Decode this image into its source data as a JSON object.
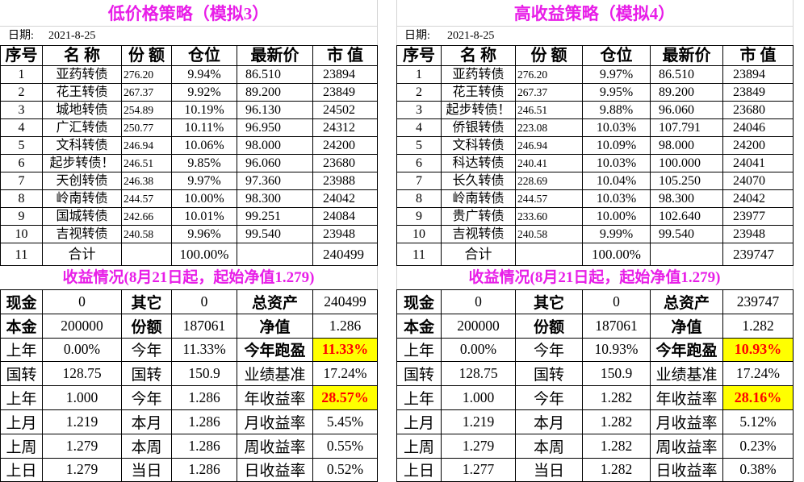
{
  "colors": {
    "title": "#e81ee8",
    "highlight_bg": "#ffff00",
    "highlight_text": "#ff0000"
  },
  "panels": [
    {
      "title": "低价格策略（模拟3）",
      "date_label": "日期:",
      "date": "2021-8-25",
      "headers": [
        "序号",
        "名  称",
        "份  额",
        "仓位",
        "最新价",
        "市  值"
      ],
      "rows": [
        {
          "no": "1",
          "name": "亚药转债",
          "shares": "276.20",
          "position": "9.94%",
          "price": "86.510",
          "value": "23894"
        },
        {
          "no": "2",
          "name": "花王转债",
          "shares": "267.37",
          "position": "9.92%",
          "price": "89.200",
          "value": "23849"
        },
        {
          "no": "3",
          "name": "城地转债",
          "shares": "254.89",
          "position": "10.19%",
          "price": "96.130",
          "value": "24502"
        },
        {
          "no": "4",
          "name": "广汇转债",
          "shares": "250.77",
          "position": "10.11%",
          "price": "96.950",
          "value": "24312"
        },
        {
          "no": "5",
          "name": "文科转债",
          "shares": "246.94",
          "position": "10.06%",
          "price": "98.000",
          "value": "24200"
        },
        {
          "no": "6",
          "name": "起步转债！",
          "shares": "246.51",
          "position": "9.85%",
          "price": "96.060",
          "value": "23680"
        },
        {
          "no": "7",
          "name": "天创转债",
          "shares": "246.38",
          "position": "9.97%",
          "price": "97.360",
          "value": "23988"
        },
        {
          "no": "8",
          "name": "岭南转债",
          "shares": "244.57",
          "position": "10.00%",
          "price": "98.300",
          "value": "24042"
        },
        {
          "no": "9",
          "name": "国城转债",
          "shares": "242.66",
          "position": "10.01%",
          "price": "99.251",
          "value": "24084"
        },
        {
          "no": "10",
          "name": "吉视转债",
          "shares": "240.58",
          "position": "9.96%",
          "price": "99.540",
          "value": "23948"
        }
      ],
      "total": {
        "no": "11",
        "label": "合计",
        "position": "100.00%",
        "value": "240499"
      },
      "summary_title": "收益情况(8月21日起，起始净值1.279)",
      "summary": [
        [
          "现金",
          "0",
          "其它",
          "0",
          "总资产",
          "240499"
        ],
        [
          "本金",
          "200000",
          "份额",
          "187061",
          "净值",
          "1.286"
        ],
        [
          "上年",
          "0.00%",
          "今年",
          "11.33%",
          "今年跑盈",
          "11.33%"
        ],
        [
          "国转",
          "128.75",
          "国转",
          "150.9",
          "业绩基准",
          "17.24%"
        ],
        [
          "上年",
          "1.000",
          "今年",
          "1.286",
          "年收益率",
          "28.57%"
        ],
        [
          "上月",
          "1.219",
          "本月",
          "1.286",
          "月收益率",
          "5.45%"
        ],
        [
          "上周",
          "1.279",
          "本周",
          "1.286",
          "周收益率",
          "0.55%"
        ],
        [
          "上日",
          "1.279",
          "当日",
          "1.286",
          "日收益率",
          "0.52%"
        ]
      ]
    },
    {
      "title": "高收益策略（模拟4）",
      "date_label": "日期:",
      "date": "2021-8-25",
      "headers": [
        "序号",
        "名  称",
        "份  额",
        "仓位",
        "最新价",
        "市  值"
      ],
      "rows": [
        {
          "no": "1",
          "name": "亚药转债",
          "shares": "276.20",
          "position": "9.97%",
          "price": "86.510",
          "value": "23894"
        },
        {
          "no": "2",
          "name": "花王转债",
          "shares": "267.37",
          "position": "9.95%",
          "price": "89.200",
          "value": "23849"
        },
        {
          "no": "3",
          "name": "起步转债！",
          "shares": "246.51",
          "position": "9.88%",
          "price": "96.060",
          "value": "23680"
        },
        {
          "no": "4",
          "name": "侨银转债",
          "shares": "223.08",
          "position": "10.03%",
          "price": "107.791",
          "value": "24046"
        },
        {
          "no": "5",
          "name": "文科转债",
          "shares": "246.94",
          "position": "10.09%",
          "price": "98.000",
          "value": "24200"
        },
        {
          "no": "6",
          "name": "科达转债",
          "shares": "240.41",
          "position": "10.03%",
          "price": "100.000",
          "value": "24041"
        },
        {
          "no": "7",
          "name": "长久转债",
          "shares": "228.69",
          "position": "10.04%",
          "price": "105.250",
          "value": "24070"
        },
        {
          "no": "8",
          "name": "岭南转债",
          "shares": "244.57",
          "position": "10.03%",
          "price": "98.300",
          "value": "24042"
        },
        {
          "no": "9",
          "name": "贵广转债",
          "shares": "233.60",
          "position": "10.00%",
          "price": "102.640",
          "value": "23977"
        },
        {
          "no": "10",
          "name": "吉视转债",
          "shares": "240.58",
          "position": "9.99%",
          "price": "99.540",
          "value": "23948"
        }
      ],
      "total": {
        "no": "11",
        "label": "合计",
        "position": "100.00%",
        "value": "239747"
      },
      "summary_title": "收益情况(8月21日起，起始净值1.279)",
      "summary": [
        [
          "现金",
          "0",
          "其它",
          "0",
          "总资产",
          "239747"
        ],
        [
          "本金",
          "200000",
          "份额",
          "187061",
          "净值",
          "1.282"
        ],
        [
          "上年",
          "0.00%",
          "今年",
          "10.93%",
          "今年跑盈",
          "10.93%"
        ],
        [
          "国转",
          "128.75",
          "国转",
          "150.9",
          "业绩基准",
          "17.24%"
        ],
        [
          "上年",
          "1.000",
          "今年",
          "1.282",
          "年收益率",
          "28.16%"
        ],
        [
          "上月",
          "1.219",
          "本月",
          "1.282",
          "月收益率",
          "5.12%"
        ],
        [
          "上周",
          "1.279",
          "本周",
          "1.282",
          "周收益率",
          "0.23%"
        ],
        [
          "上日",
          "1.277",
          "当日",
          "1.282",
          "日收益率",
          "0.38%"
        ]
      ]
    }
  ]
}
